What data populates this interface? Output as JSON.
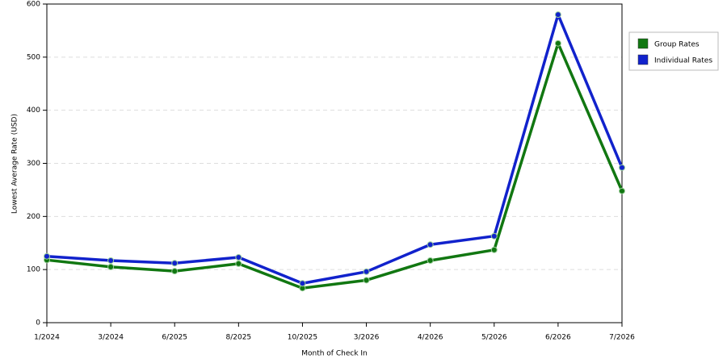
{
  "chart_data": {
    "type": "line",
    "x_label": "Month of Check In",
    "y_label": "Lowest Average Rate (USD)",
    "categories": [
      "1/2024",
      "3/2024",
      "6/2025",
      "8/2025",
      "10/2025",
      "3/2026",
      "4/2026",
      "5/2026",
      "6/2026",
      "7/2026"
    ],
    "series": [
      {
        "name": "Group Rates",
        "color": "#117711",
        "values": [
          118,
          105,
          97,
          111,
          65,
          80,
          117,
          137,
          526,
          248
        ]
      },
      {
        "name": "Individual Rates",
        "color": "#1122cc",
        "values": [
          125,
          117,
          112,
          123,
          74,
          96,
          147,
          163,
          580,
          292
        ]
      }
    ],
    "ylim": [
      0,
      600
    ],
    "yticks": [
      0,
      100,
      200,
      300,
      400,
      500,
      600
    ],
    "grid": true
  }
}
